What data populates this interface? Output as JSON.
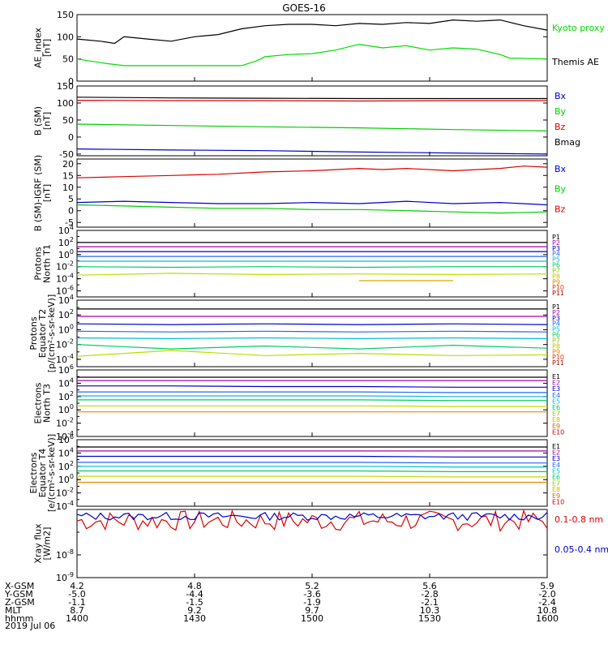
{
  "title": "GOES-16",
  "date_label": "2019 Jul 06",
  "x_axis": {
    "rows": [
      {
        "label": "X-GSM",
        "values": [
          "4.2",
          "4.8",
          "5.2",
          "5.6",
          "5.9"
        ]
      },
      {
        "label": "Y-GSM",
        "values": [
          "-5.0",
          "-4.4",
          "-3.6",
          "-2.8",
          "-2.0"
        ]
      },
      {
        "label": "Z-GSM",
        "values": [
          "-1.1",
          "-1.5",
          "-1.9",
          "-2.1",
          "-2.4"
        ]
      },
      {
        "label": "MLT",
        "values": [
          "8.7",
          "9.2",
          "9.7",
          "10.3",
          "10.8"
        ]
      },
      {
        "label": "hhmm",
        "values": [
          "1400",
          "1430",
          "1500",
          "1530",
          "1600"
        ]
      }
    ]
  },
  "chart_data": [
    {
      "type": "line",
      "ylabel": [
        "AE_index",
        "[nT]"
      ],
      "ylim": [
        0,
        150
      ],
      "yticks": [
        "0",
        "50",
        "100",
        "150"
      ],
      "series": [
        {
          "name": "Kyoto proxy AE",
          "color": "#00dd00",
          "x": [
            0,
            6,
            10,
            15,
            20,
            30,
            35,
            38,
            40,
            45,
            50,
            55,
            60,
            65,
            70,
            75,
            80,
            85,
            90,
            92,
            100
          ],
          "y": [
            50,
            40,
            35,
            35,
            35,
            35,
            35,
            45,
            55,
            60,
            62,
            70,
            83,
            75,
            80,
            70,
            75,
            72,
            60,
            52,
            50
          ]
        },
        {
          "name": "Themis AE",
          "color": "#000000",
          "x": [
            0,
            5,
            8,
            10,
            15,
            20,
            25,
            30,
            35,
            40,
            45,
            50,
            55,
            60,
            65,
            70,
            75,
            80,
            85,
            90,
            95,
            100
          ],
          "y": [
            95,
            90,
            85,
            100,
            95,
            90,
            100,
            105,
            118,
            125,
            128,
            128,
            125,
            130,
            128,
            132,
            130,
            138,
            135,
            138,
            125,
            115
          ]
        }
      ],
      "legend_colors": [
        "#00dd00",
        "#000000"
      ]
    },
    {
      "type": "line",
      "ylabel": [
        "B (SM)",
        "[nT]"
      ],
      "ylim": [
        -55,
        150
      ],
      "yticks": [
        "-50",
        "0",
        "50",
        "100",
        "150"
      ],
      "series": [
        {
          "name": "Bx",
          "color": "#0000cc",
          "x": [
            0,
            20,
            40,
            60,
            80,
            100
          ],
          "y": [
            -35,
            -38,
            -40,
            -44,
            -47,
            -50
          ]
        },
        {
          "name": "By",
          "color": "#00cc00",
          "x": [
            0,
            20,
            40,
            60,
            80,
            100
          ],
          "y": [
            38,
            34,
            30,
            27,
            22,
            18
          ]
        },
        {
          "name": "Bz",
          "color": "#dd0000",
          "x": [
            0,
            20,
            40,
            60,
            80,
            100
          ],
          "y": [
            108,
            107,
            107,
            106,
            107,
            107
          ]
        },
        {
          "name": "Bmag",
          "color": "#000000",
          "x": [
            0,
            20,
            40,
            60,
            80,
            100
          ],
          "y": [
            117,
            115,
            114,
            113,
            113,
            113
          ]
        }
      ]
    },
    {
      "type": "line",
      "ylabel": [
        "B (SM)-IGRF (SM)",
        "[nT]"
      ],
      "ylim": [
        -7,
        22
      ],
      "yticks": [
        "-5",
        "0",
        "5",
        "10",
        "15",
        "20"
      ],
      "series": [
        {
          "name": "Bx",
          "color": "#0000cc",
          "x": [
            0,
            10,
            20,
            30,
            40,
            50,
            60,
            70,
            80,
            90,
            100
          ],
          "y": [
            3.5,
            4,
            3.5,
            3,
            3,
            3.5,
            3,
            4,
            3,
            3.5,
            2.5
          ]
        },
        {
          "name": "By",
          "color": "#00cc00",
          "x": [
            0,
            10,
            20,
            30,
            40,
            50,
            60,
            70,
            80,
            90,
            100
          ],
          "y": [
            2.5,
            2,
            1.5,
            1,
            1,
            0.5,
            0.5,
            0,
            -0.5,
            -1,
            -0.5
          ]
        },
        {
          "name": "Bz",
          "color": "#dd0000",
          "x": [
            0,
            10,
            20,
            30,
            40,
            50,
            60,
            65,
            70,
            80,
            90,
            95,
            100
          ],
          "y": [
            14,
            14.5,
            15,
            15.5,
            16.5,
            17,
            18,
            17.5,
            18,
            17,
            18,
            19,
            18.5
          ]
        }
      ]
    },
    {
      "type": "line",
      "ylabel": [
        "Protons",
        "North T1"
      ],
      "ylog": true,
      "ylim_exp": [
        -7,
        4
      ],
      "yticks": [
        "10^-6",
        "10^-4",
        "10^-2",
        "10^0",
        "10^2",
        "10^4"
      ],
      "channels": [
        "P1",
        "P2",
        "P3",
        "P4",
        "P5",
        "P6",
        "P7",
        "P8",
        "P9",
        "P10",
        "P11"
      ],
      "channel_colors": [
        "#000000",
        "#aa00aa",
        "#0000cc",
        "#2266ff",
        "#00bbdd",
        "#00cc66",
        "#88cc00",
        "#ccbb00",
        "#dd8800",
        "#ee3300",
        "#aa0000"
      ],
      "series": [
        {
          "name": "P1",
          "color": "#000000",
          "y": [
            2,
            2,
            2,
            2,
            2,
            2
          ]
        },
        {
          "name": "P2",
          "color": "#aa00aa",
          "y": [
            1.3,
            1.3,
            1.3,
            1.3,
            1.3,
            1.3
          ]
        },
        {
          "name": "P3",
          "color": "#0000cc",
          "y": [
            0.5,
            0.5,
            0.5,
            0.5,
            0.5,
            0.5
          ]
        },
        {
          "name": "P4",
          "color": "#2266ff",
          "y": [
            -0.3,
            -0.3,
            -0.3,
            -0.3,
            -0.3,
            -0.3
          ]
        },
        {
          "name": "P5",
          "color": "#00bbdd",
          "y": [
            -1.1,
            -1.1,
            -1.1,
            -1.1,
            -1.1,
            -1.1
          ]
        },
        {
          "name": "P6",
          "color": "#00cc66",
          "y": [
            -2,
            -2.1,
            -2,
            -2.1,
            -2,
            -2
          ]
        },
        {
          "name": "P7",
          "color": "#bbdd00",
          "y": [
            -3.4,
            -3.1,
            -3.3,
            -3.2,
            -3.3,
            -3.2
          ]
        },
        {
          "name": "P9",
          "color": "#ddaa00",
          "y": [
            null,
            null,
            null,
            -4.3,
            -4.3,
            null
          ]
        }
      ]
    },
    {
      "type": "line",
      "ylabel": [
        "Protons",
        "Equator T2",
        "[p/(cm²-s-sr-keV)]"
      ],
      "ylog": true,
      "ylim_exp": [
        -5,
        4
      ],
      "yticks": [
        "10^-4",
        "10^-2",
        "10^0",
        "10^2",
        "10^4"
      ],
      "channels": [
        "P1",
        "P2",
        "P3",
        "P4",
        "P5",
        "P6",
        "P7",
        "P8",
        "P9",
        "P10",
        "P11"
      ],
      "channel_colors": [
        "#000000",
        "#aa00aa",
        "#0000cc",
        "#2266ff",
        "#00bbdd",
        "#00cc66",
        "#88cc00",
        "#ccbb00",
        "#dd8800",
        "#ee3300",
        "#aa0000"
      ],
      "series": [
        {
          "name": "P1",
          "color": "#000000",
          "y": [
            2.8,
            2.8,
            2.8,
            2.8,
            2.8,
            2.8
          ]
        },
        {
          "name": "P2",
          "color": "#aa00aa",
          "y": [
            1.8,
            1.8,
            1.8,
            1.8,
            1.8,
            1.8
          ]
        },
        {
          "name": "P3",
          "color": "#0000cc",
          "y": [
            0.8,
            0.7,
            0.8,
            0.7,
            0.8,
            0.7
          ]
        },
        {
          "name": "P4",
          "color": "#2266ff",
          "y": [
            -0.2,
            -0.3,
            -0.2,
            -0.3,
            -0.2,
            -0.3
          ]
        },
        {
          "name": "P5",
          "color": "#00bbdd",
          "y": [
            -1.1,
            -1.2,
            -1.1,
            -1.2,
            -1.1,
            -1.2
          ]
        },
        {
          "name": "P6",
          "color": "#00cc66",
          "y": [
            -2,
            -2.6,
            -2.2,
            -2.6,
            -2.1,
            -2.5
          ]
        },
        {
          "name": "P7",
          "color": "#bbdd00",
          "y": [
            -3.6,
            -2.8,
            -3.5,
            -3.2,
            -3.5,
            -3.4
          ]
        }
      ]
    },
    {
      "type": "line",
      "ylabel": [
        "Electrons",
        "North T3"
      ],
      "ylog": true,
      "ylim_exp": [
        -4,
        6
      ],
      "yticks": [
        "10^-4",
        "10^-2",
        "10^0",
        "10^2",
        "10^4",
        "10^6"
      ],
      "channels": [
        "E1",
        "E2",
        "E3",
        "E4",
        "E5",
        "E6",
        "E7",
        "E8",
        "E9",
        "E10"
      ],
      "channel_colors": [
        "#000000",
        "#aa00aa",
        "#0000cc",
        "#2266ff",
        "#00bbdd",
        "#00cc66",
        "#88cc00",
        "#ccbb00",
        "#dd6600",
        "#cc0000"
      ],
      "series": [
        {
          "name": "E1",
          "color": "#000000",
          "y": [
            4.9,
            4.9,
            4.9,
            4.9,
            4.9,
            4.9
          ]
        },
        {
          "name": "E2",
          "color": "#aa00aa",
          "y": [
            4.4,
            4.4,
            4.4,
            4.4,
            4.4,
            4.4
          ]
        },
        {
          "name": "E3",
          "color": "#0000cc",
          "y": [
            3.6,
            3.6,
            3.5,
            3.5,
            3.4,
            3.4
          ]
        },
        {
          "name": "E4",
          "color": "#2266ff",
          "y": [
            2.7,
            2.7,
            2.7,
            2.7,
            2.6,
            2.6
          ]
        },
        {
          "name": "E5",
          "color": "#00bbdd",
          "y": [
            2.1,
            2.1,
            2.1,
            2.1,
            2,
            2
          ]
        },
        {
          "name": "E6",
          "color": "#00cc66",
          "y": [
            1.5,
            1.5,
            1.5,
            1.5,
            1.4,
            1.4
          ]
        },
        {
          "name": "E7",
          "color": "#bbdd00",
          "y": [
            0.6,
            0.6,
            0.6,
            0.6,
            0.5,
            0.5
          ]
        },
        {
          "name": "E8",
          "color": "#ee8800",
          "y": [
            -0.3,
            -0.3,
            -0.3,
            -0.3,
            -0.3,
            -0.3
          ]
        }
      ]
    },
    {
      "type": "line",
      "ylabel": [
        "Electrons",
        "Equator T4",
        "[e/(cm²-s-sr-keV)]"
      ],
      "ylog": true,
      "ylim_exp": [
        -4,
        6
      ],
      "yticks": [
        "10^-4",
        "10^-2",
        "10^0",
        "10^2",
        "10^4",
        "10^6"
      ],
      "channels": [
        "E1",
        "E2",
        "E3",
        "E4",
        "E5",
        "E6",
        "E7",
        "E8",
        "E9",
        "E10"
      ],
      "channel_colors": [
        "#000000",
        "#aa00aa",
        "#0000cc",
        "#2266ff",
        "#00bbdd",
        "#00cc66",
        "#88cc00",
        "#ccbb00",
        "#dd6600",
        "#cc0000"
      ],
      "series": [
        {
          "name": "E1",
          "color": "#000000",
          "y": [
            4.9,
            4.9,
            4.9,
            4.9,
            4.9,
            4.9
          ]
        },
        {
          "name": "E2",
          "color": "#aa00aa",
          "y": [
            4.3,
            4.3,
            4.3,
            4.3,
            4.3,
            4.3
          ]
        },
        {
          "name": "E3",
          "color": "#0000cc",
          "y": [
            3.5,
            3.5,
            3.5,
            3.5,
            3.4,
            3.4
          ]
        },
        {
          "name": "E4",
          "color": "#2266ff",
          "y": [
            2.6,
            2.6,
            2.6,
            2.6,
            2.5,
            2.5
          ]
        },
        {
          "name": "E5",
          "color": "#00bbdd",
          "y": [
            2,
            2,
            2,
            2,
            1.9,
            1.9
          ]
        },
        {
          "name": "E6",
          "color": "#00cc66",
          "y": [
            1.3,
            1.3,
            1.3,
            1.3,
            1.2,
            1.2
          ]
        },
        {
          "name": "E7",
          "color": "#bbdd00",
          "y": [
            0.5,
            0.5,
            0.5,
            0.5,
            0.4,
            0.4
          ]
        },
        {
          "name": "E8",
          "color": "#ee8800",
          "y": [
            -0.4,
            -0.4,
            -0.4,
            -0.4,
            -0.4,
            -0.4
          ]
        }
      ]
    },
    {
      "type": "line",
      "ylabel": [
        "Xray flux",
        "[W/m2]"
      ],
      "ylog": true,
      "ylim_exp": [
        -9,
        -6
      ],
      "yticks": [
        "10^-9",
        "10^-8"
      ],
      "series": [
        {
          "name": "0.1-0.8 nm",
          "color": "#dd0000",
          "seed": 7,
          "base": -6.5,
          "amp": 0.45
        },
        {
          "name": "0.05-0.4 nm",
          "color": "#0000cc",
          "seed": 13,
          "base": -6.3,
          "amp": 0.25
        }
      ]
    }
  ]
}
